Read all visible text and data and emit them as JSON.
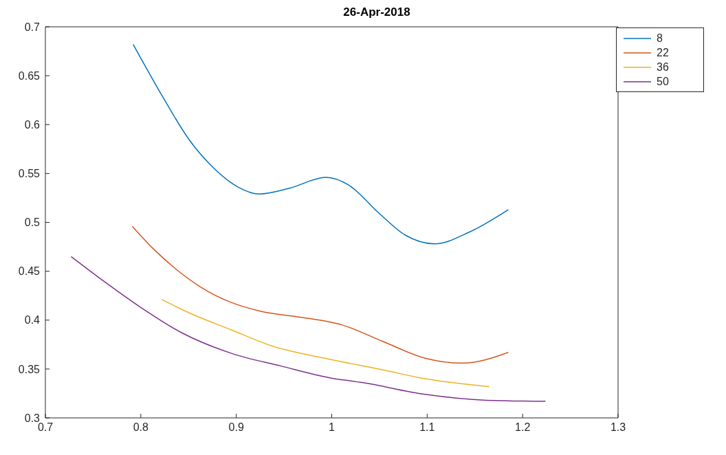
{
  "chart_data": {
    "type": "line",
    "title": "26-Apr-2018",
    "xlim": [
      0.7,
      1.3
    ],
    "xticks": [
      0.7,
      0.8,
      0.9,
      1,
      1.1,
      1.2,
      1.3
    ],
    "ylim": [
      0.3,
      0.7
    ],
    "yticks": [
      0.3,
      0.35,
      0.4,
      0.45,
      0.5,
      0.55,
      0.6,
      0.65,
      0.7
    ],
    "grid": false,
    "legend": "top right",
    "marker": "none",
    "line_style": "solid",
    "series": [
      {
        "name": "8",
        "color": "#0072bd",
        "x": [
          0.792,
          0.822,
          0.851,
          0.878,
          0.902,
          0.924,
          0.956,
          0.994,
          1.018,
          1.05,
          1.077,
          1.108,
          1.144,
          1.185
        ],
        "values": [
          0.682,
          0.63,
          0.584,
          0.554,
          0.536,
          0.529,
          0.535,
          0.546,
          0.538,
          0.509,
          0.487,
          0.478,
          0.49,
          0.513
        ]
      },
      {
        "name": "22",
        "color": "#d95319",
        "x": [
          0.791,
          0.813,
          0.837,
          0.864,
          0.895,
          0.926,
          0.967,
          0.998,
          1.011,
          1.054,
          1.098,
          1.137,
          1.185
        ],
        "values": [
          0.496,
          0.473,
          0.452,
          0.433,
          0.418,
          0.409,
          0.403,
          0.398,
          0.395,
          0.378,
          0.361,
          0.356,
          0.367
        ]
      },
      {
        "name": "36",
        "color": "#edb120",
        "x": [
          0.822,
          0.854,
          0.895,
          0.936,
          0.998,
          1.054,
          1.098,
          1.165
        ],
        "values": [
          0.421,
          0.406,
          0.39,
          0.374,
          0.36,
          0.349,
          0.34,
          0.332
        ]
      },
      {
        "name": "50",
        "color": "#7e2f8e",
        "x": [
          0.727,
          0.761,
          0.8,
          0.843,
          0.895,
          0.947,
          0.998,
          1.033,
          1.098,
          1.163,
          1.224
        ],
        "values": [
          0.465,
          0.44,
          0.413,
          0.387,
          0.366,
          0.353,
          0.341,
          0.336,
          0.324,
          0.318,
          0.317
        ]
      }
    ]
  }
}
